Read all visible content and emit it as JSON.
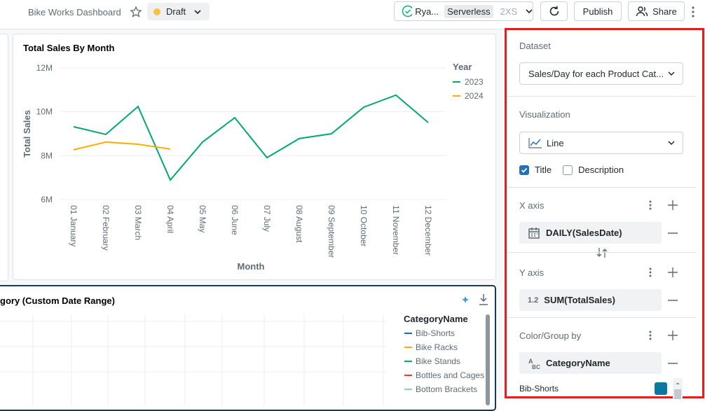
{
  "header": {
    "title": "Bike Works Dashboard",
    "status": "Draft",
    "owner": "Rya...",
    "compute": "Serverless",
    "size": "2XS",
    "buttons": [
      "Publish",
      "Share"
    ]
  },
  "chart_data": {
    "type": "line",
    "title": "Total Sales By Month",
    "x_label": "Month",
    "y_label": "Total Sales",
    "legend_title": "Year",
    "categories": [
      "01 January",
      "02 February",
      "03 March",
      "04 April",
      "05 May",
      "06 June",
      "07 July",
      "08 August",
      "09 September",
      "10 October",
      "11 November",
      "12 December"
    ],
    "series": [
      {
        "name": "2023",
        "color": "#00a972",
        "values": [
          9320000,
          8970000,
          10240000,
          6890000,
          8620000,
          9730000,
          7910000,
          8780000,
          9000000,
          10210000,
          10760000,
          9510000
        ]
      },
      {
        "name": "2024",
        "color": "#ffab00",
        "values": [
          8270000,
          8620000,
          8520000,
          8300000,
          null,
          null,
          null,
          null,
          null,
          null,
          null,
          null
        ]
      }
    ],
    "ylim": [
      6000000,
      12000000
    ],
    "yticks": [
      {
        "value": 6000000,
        "label": "6M"
      },
      {
        "value": 8000000,
        "label": "8M"
      },
      {
        "value": 10000000,
        "label": "10M"
      },
      {
        "value": 12000000,
        "label": "12M"
      }
    ],
    "grid": true
  },
  "widget2": {
    "title": "gory (Custom Date Range)",
    "legend_title": "CategoryName",
    "legend": [
      {
        "name": "Bib-Shorts",
        "color": "#077a9d"
      },
      {
        "name": "Bike Racks",
        "color": "#ffab00"
      },
      {
        "name": "Bike Stands",
        "color": "#00a972"
      },
      {
        "name": "Bottles and Cages",
        "color": "#ff3621"
      },
      {
        "name": "Bottom Brackets",
        "color": "#8bcae7"
      }
    ]
  },
  "panel": {
    "dataset_label": "Dataset",
    "dataset": "Sales/Day for each Product Cat...",
    "visualization_label": "Visualization",
    "visualization": "Line",
    "checkboxes": [
      {
        "label": "Title",
        "checked": true
      },
      {
        "label": "Description",
        "checked": false
      }
    ],
    "x_axis_label": "X axis",
    "x_field": "DAILY(SalesDate)",
    "y_axis_label": "Y axis",
    "y_type": "1.2",
    "y_field": "SUM(TotalSales)",
    "color_label": "Color/Group by",
    "color_field": "CategoryName",
    "color_items": [
      {
        "name": "Bib-Shorts",
        "color": "#077a9d"
      }
    ]
  }
}
